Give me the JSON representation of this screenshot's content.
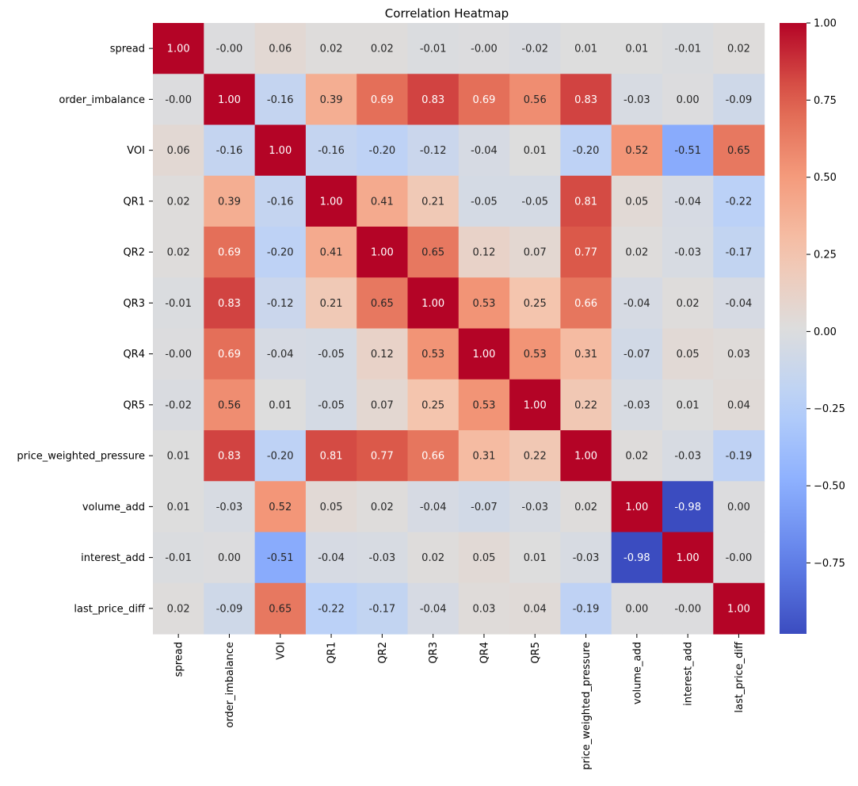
{
  "chart_data": {
    "type": "heatmap",
    "title": "Correlation Heatmap",
    "xlabel": "",
    "ylabel": "",
    "labels": [
      "spread",
      "order_imbalance",
      "VOI",
      "QR1",
      "QR2",
      "QR3",
      "QR4",
      "QR5",
      "price_weighted_pressure",
      "volume_add",
      "interest_add",
      "last_price_diff"
    ],
    "matrix": [
      [
        1.0,
        -0.0,
        0.06,
        0.02,
        0.02,
        -0.01,
        -0.0,
        -0.02,
        0.01,
        0.01,
        -0.01,
        0.02
      ],
      [
        -0.0,
        1.0,
        -0.16,
        0.39,
        0.69,
        0.83,
        0.69,
        0.56,
        0.83,
        -0.03,
        0.0,
        -0.09
      ],
      [
        0.06,
        -0.16,
        1.0,
        -0.16,
        -0.2,
        -0.12,
        -0.04,
        0.01,
        -0.2,
        0.52,
        -0.51,
        0.65
      ],
      [
        0.02,
        0.39,
        -0.16,
        1.0,
        0.41,
        0.21,
        -0.05,
        -0.05,
        0.81,
        0.05,
        -0.04,
        -0.22
      ],
      [
        0.02,
        0.69,
        -0.2,
        0.41,
        1.0,
        0.65,
        0.12,
        0.07,
        0.77,
        0.02,
        -0.03,
        -0.17
      ],
      [
        -0.01,
        0.83,
        -0.12,
        0.21,
        0.65,
        1.0,
        0.53,
        0.25,
        0.66,
        -0.04,
        0.02,
        -0.04
      ],
      [
        -0.0,
        0.69,
        -0.04,
        -0.05,
        0.12,
        0.53,
        1.0,
        0.53,
        0.31,
        -0.07,
        0.05,
        0.03
      ],
      [
        -0.02,
        0.56,
        0.01,
        -0.05,
        0.07,
        0.25,
        0.53,
        1.0,
        0.22,
        -0.03,
        0.01,
        0.04
      ],
      [
        0.01,
        0.83,
        -0.2,
        0.81,
        0.77,
        0.66,
        0.31,
        0.22,
        1.0,
        0.02,
        -0.03,
        -0.19
      ],
      [
        0.01,
        -0.03,
        0.52,
        0.05,
        0.02,
        -0.04,
        -0.07,
        -0.03,
        0.02,
        1.0,
        -0.98,
        0.0
      ],
      [
        -0.01,
        0.0,
        -0.51,
        -0.04,
        -0.03,
        0.02,
        0.05,
        0.01,
        -0.03,
        -0.98,
        1.0,
        -0.0
      ],
      [
        0.02,
        -0.09,
        0.65,
        -0.22,
        -0.17,
        -0.04,
        0.03,
        0.04,
        -0.19,
        0.0,
        -0.0,
        1.0
      ]
    ],
    "annotations": [
      [
        "1.00",
        "-0.00",
        "0.06",
        "0.02",
        "0.02",
        "-0.01",
        "-0.00",
        "-0.02",
        "0.01",
        "0.01",
        "-0.01",
        "0.02"
      ],
      [
        "-0.00",
        "1.00",
        "-0.16",
        "0.39",
        "0.69",
        "0.83",
        "0.69",
        "0.56",
        "0.83",
        "-0.03",
        "0.00",
        "-0.09"
      ],
      [
        "0.06",
        "-0.16",
        "1.00",
        "-0.16",
        "-0.20",
        "-0.12",
        "-0.04",
        "0.01",
        "-0.20",
        "0.52",
        "-0.51",
        "0.65"
      ],
      [
        "0.02",
        "0.39",
        "-0.16",
        "1.00",
        "0.41",
        "0.21",
        "-0.05",
        "-0.05",
        "0.81",
        "0.05",
        "-0.04",
        "-0.22"
      ],
      [
        "0.02",
        "0.69",
        "-0.20",
        "0.41",
        "1.00",
        "0.65",
        "0.12",
        "0.07",
        "0.77",
        "0.02",
        "-0.03",
        "-0.17"
      ],
      [
        "-0.01",
        "0.83",
        "-0.12",
        "0.21",
        "0.65",
        "1.00",
        "0.53",
        "0.25",
        "0.66",
        "-0.04",
        "0.02",
        "-0.04"
      ],
      [
        "-0.00",
        "0.69",
        "-0.04",
        "-0.05",
        "0.12",
        "0.53",
        "1.00",
        "0.53",
        "0.31",
        "-0.07",
        "0.05",
        "0.03"
      ],
      [
        "-0.02",
        "0.56",
        "0.01",
        "-0.05",
        "0.07",
        "0.25",
        "0.53",
        "1.00",
        "0.22",
        "-0.03",
        "0.01",
        "0.04"
      ],
      [
        "0.01",
        "0.83",
        "-0.20",
        "0.81",
        "0.77",
        "0.66",
        "0.31",
        "0.22",
        "1.00",
        "0.02",
        "-0.03",
        "-0.19"
      ],
      [
        "0.01",
        "-0.03",
        "0.52",
        "0.05",
        "0.02",
        "-0.04",
        "-0.07",
        "-0.03",
        "0.02",
        "1.00",
        "-0.98",
        "0.00"
      ],
      [
        "-0.01",
        "0.00",
        "-0.51",
        "-0.04",
        "-0.03",
        "0.02",
        "0.05",
        "0.01",
        "-0.03",
        "-0.98",
        "1.00",
        "-0.00"
      ],
      [
        "0.02",
        "-0.09",
        "0.65",
        "-0.22",
        "-0.17",
        "-0.04",
        "0.03",
        "0.04",
        "-0.19",
        "0.00",
        "-0.00",
        "1.00"
      ]
    ],
    "colormap": "coolwarm",
    "vmin": -0.98,
    "vmax": 1.0,
    "colorbar": {
      "ticks": [
        1.0,
        0.75,
        0.5,
        0.25,
        0.0,
        -0.25,
        -0.5,
        -0.75
      ],
      "tick_labels": [
        "1.00",
        "0.75",
        "0.50",
        "0.25",
        "0.00",
        "−0.25",
        "−0.50",
        "−0.75"
      ]
    },
    "legend": "colorbar right"
  }
}
